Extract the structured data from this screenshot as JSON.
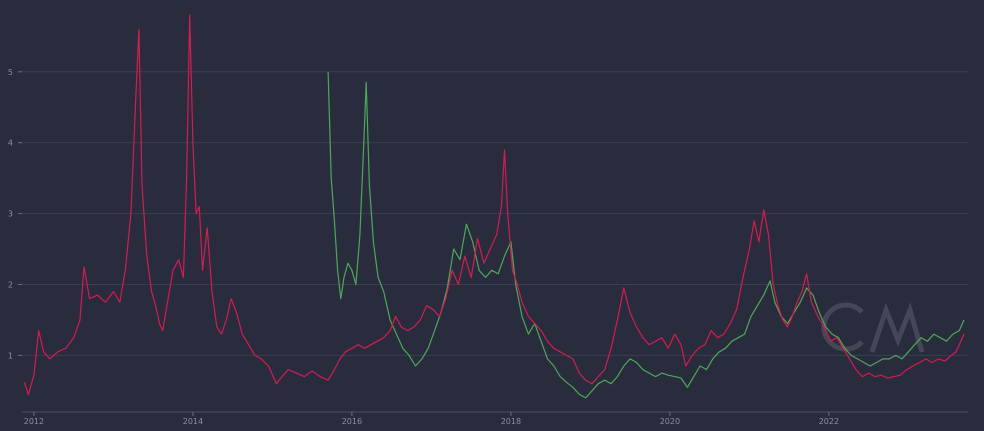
{
  "chart_data": {
    "type": "line",
    "title": "",
    "xlabel": "",
    "ylabel": "",
    "xlim": [
      2011.85,
      2023.75
    ],
    "ylim": [
      0.3,
      5.9
    ],
    "grid": true,
    "legend": "none",
    "x_ticks": [
      {
        "value": 2012,
        "label": "2012"
      },
      {
        "value": 2014,
        "label": "2014"
      },
      {
        "value": 2016,
        "label": "2016"
      },
      {
        "value": 2018,
        "label": "2018"
      },
      {
        "value": 2020,
        "label": "2020"
      },
      {
        "value": 2022,
        "label": "2022"
      }
    ],
    "y_ticks": [
      {
        "value": 1,
        "label": "1"
      },
      {
        "value": 2,
        "label": "2"
      },
      {
        "value": 3,
        "label": "3"
      },
      {
        "value": 4,
        "label": "4"
      },
      {
        "value": 5,
        "label": "5"
      }
    ],
    "series": [
      {
        "color": "#d81b4f",
        "points": [
          [
            2011.88,
            0.62
          ],
          [
            2011.93,
            0.45
          ],
          [
            2012.0,
            0.72
          ],
          [
            2012.06,
            1.35
          ],
          [
            2012.12,
            1.05
          ],
          [
            2012.2,
            0.95
          ],
          [
            2012.3,
            1.05
          ],
          [
            2012.4,
            1.1
          ],
          [
            2012.5,
            1.25
          ],
          [
            2012.58,
            1.5
          ],
          [
            2012.63,
            2.25
          ],
          [
            2012.7,
            1.8
          ],
          [
            2012.8,
            1.85
          ],
          [
            2012.9,
            1.75
          ],
          [
            2013.0,
            1.9
          ],
          [
            2013.08,
            1.75
          ],
          [
            2013.15,
            2.2
          ],
          [
            2013.22,
            3.0
          ],
          [
            2013.28,
            4.6
          ],
          [
            2013.32,
            5.6
          ],
          [
            2013.36,
            3.4
          ],
          [
            2013.42,
            2.4
          ],
          [
            2013.48,
            1.9
          ],
          [
            2013.53,
            1.7
          ],
          [
            2013.58,
            1.45
          ],
          [
            2013.62,
            1.35
          ],
          [
            2013.68,
            1.75
          ],
          [
            2013.75,
            2.2
          ],
          [
            2013.82,
            2.35
          ],
          [
            2013.88,
            2.1
          ],
          [
            2013.92,
            3.5
          ],
          [
            2013.96,
            5.8
          ],
          [
            2014.0,
            4.0
          ],
          [
            2014.04,
            3.0
          ],
          [
            2014.08,
            3.1
          ],
          [
            2014.12,
            2.2
          ],
          [
            2014.18,
            2.8
          ],
          [
            2014.24,
            1.9
          ],
          [
            2014.3,
            1.4
          ],
          [
            2014.36,
            1.3
          ],
          [
            2014.42,
            1.5
          ],
          [
            2014.48,
            1.8
          ],
          [
            2014.55,
            1.6
          ],
          [
            2014.62,
            1.3
          ],
          [
            2014.7,
            1.15
          ],
          [
            2014.78,
            1.0
          ],
          [
            2014.86,
            0.95
          ],
          [
            2014.95,
            0.85
          ],
          [
            2015.05,
            0.6
          ],
          [
            2015.12,
            0.7
          ],
          [
            2015.2,
            0.8
          ],
          [
            2015.3,
            0.75
          ],
          [
            2015.4,
            0.7
          ],
          [
            2015.5,
            0.78
          ],
          [
            2015.6,
            0.7
          ],
          [
            2015.7,
            0.65
          ],
          [
            2015.78,
            0.8
          ],
          [
            2015.85,
            0.95
          ],
          [
            2015.92,
            1.05
          ],
          [
            2016.0,
            1.1
          ],
          [
            2016.08,
            1.15
          ],
          [
            2016.16,
            1.1
          ],
          [
            2016.24,
            1.15
          ],
          [
            2016.32,
            1.2
          ],
          [
            2016.4,
            1.25
          ],
          [
            2016.48,
            1.35
          ],
          [
            2016.55,
            1.55
          ],
          [
            2016.62,
            1.4
          ],
          [
            2016.7,
            1.35
          ],
          [
            2016.78,
            1.4
          ],
          [
            2016.86,
            1.5
          ],
          [
            2016.94,
            1.7
          ],
          [
            2017.02,
            1.65
          ],
          [
            2017.1,
            1.55
          ],
          [
            2017.18,
            1.8
          ],
          [
            2017.26,
            2.2
          ],
          [
            2017.34,
            2.0
          ],
          [
            2017.42,
            2.4
          ],
          [
            2017.5,
            2.1
          ],
          [
            2017.58,
            2.65
          ],
          [
            2017.66,
            2.3
          ],
          [
            2017.74,
            2.5
          ],
          [
            2017.82,
            2.7
          ],
          [
            2017.88,
            3.1
          ],
          [
            2017.92,
            3.9
          ],
          [
            2017.96,
            3.0
          ],
          [
            2018.02,
            2.2
          ],
          [
            2018.08,
            2.0
          ],
          [
            2018.14,
            1.75
          ],
          [
            2018.22,
            1.55
          ],
          [
            2018.3,
            1.45
          ],
          [
            2018.38,
            1.35
          ],
          [
            2018.46,
            1.2
          ],
          [
            2018.54,
            1.1
          ],
          [
            2018.62,
            1.05
          ],
          [
            2018.7,
            1.0
          ],
          [
            2018.78,
            0.95
          ],
          [
            2018.86,
            0.75
          ],
          [
            2018.94,
            0.65
          ],
          [
            2019.02,
            0.6
          ],
          [
            2019.1,
            0.7
          ],
          [
            2019.18,
            0.8
          ],
          [
            2019.26,
            1.1
          ],
          [
            2019.34,
            1.5
          ],
          [
            2019.42,
            1.95
          ],
          [
            2019.5,
            1.6
          ],
          [
            2019.58,
            1.4
          ],
          [
            2019.66,
            1.25
          ],
          [
            2019.74,
            1.15
          ],
          [
            2019.82,
            1.2
          ],
          [
            2019.9,
            1.25
          ],
          [
            2019.98,
            1.1
          ],
          [
            2020.06,
            1.3
          ],
          [
            2020.14,
            1.15
          ],
          [
            2020.2,
            0.85
          ],
          [
            2020.28,
            1.0
          ],
          [
            2020.36,
            1.1
          ],
          [
            2020.44,
            1.15
          ],
          [
            2020.52,
            1.35
          ],
          [
            2020.6,
            1.25
          ],
          [
            2020.68,
            1.3
          ],
          [
            2020.76,
            1.45
          ],
          [
            2020.84,
            1.65
          ],
          [
            2020.92,
            2.1
          ],
          [
            2021.0,
            2.5
          ],
          [
            2021.06,
            2.9
          ],
          [
            2021.12,
            2.6
          ],
          [
            2021.18,
            3.05
          ],
          [
            2021.24,
            2.7
          ],
          [
            2021.3,
            2.0
          ],
          [
            2021.36,
            1.7
          ],
          [
            2021.42,
            1.5
          ],
          [
            2021.48,
            1.4
          ],
          [
            2021.54,
            1.55
          ],
          [
            2021.6,
            1.75
          ],
          [
            2021.66,
            1.9
          ],
          [
            2021.72,
            2.15
          ],
          [
            2021.78,
            1.75
          ],
          [
            2021.86,
            1.55
          ],
          [
            2021.94,
            1.4
          ],
          [
            2022.02,
            1.2
          ],
          [
            2022.1,
            1.25
          ],
          [
            2022.18,
            1.1
          ],
          [
            2022.26,
            0.95
          ],
          [
            2022.34,
            0.8
          ],
          [
            2022.42,
            0.7
          ],
          [
            2022.5,
            0.75
          ],
          [
            2022.58,
            0.7
          ],
          [
            2022.66,
            0.72
          ],
          [
            2022.74,
            0.68
          ],
          [
            2022.82,
            0.7
          ],
          [
            2022.9,
            0.72
          ],
          [
            2022.98,
            0.8
          ],
          [
            2023.06,
            0.85
          ],
          [
            2023.14,
            0.9
          ],
          [
            2023.22,
            0.95
          ],
          [
            2023.3,
            0.9
          ],
          [
            2023.38,
            0.95
          ],
          [
            2023.46,
            0.92
          ],
          [
            2023.54,
            1.0
          ],
          [
            2023.6,
            1.05
          ],
          [
            2023.66,
            1.2
          ],
          [
            2023.7,
            1.3
          ]
        ]
      },
      {
        "color": "#4fa85a",
        "points": [
          [
            2015.7,
            5.0
          ],
          [
            2015.74,
            3.5
          ],
          [
            2015.78,
            2.9
          ],
          [
            2015.82,
            2.2
          ],
          [
            2015.86,
            1.8
          ],
          [
            2015.9,
            2.1
          ],
          [
            2015.95,
            2.3
          ],
          [
            2016.0,
            2.2
          ],
          [
            2016.05,
            2.0
          ],
          [
            2016.1,
            2.7
          ],
          [
            2016.15,
            4.0
          ],
          [
            2016.18,
            4.85
          ],
          [
            2016.22,
            3.4
          ],
          [
            2016.27,
            2.6
          ],
          [
            2016.33,
            2.1
          ],
          [
            2016.4,
            1.9
          ],
          [
            2016.48,
            1.5
          ],
          [
            2016.56,
            1.3
          ],
          [
            2016.64,
            1.1
          ],
          [
            2016.72,
            1.0
          ],
          [
            2016.8,
            0.85
          ],
          [
            2016.88,
            0.95
          ],
          [
            2016.96,
            1.1
          ],
          [
            2017.04,
            1.35
          ],
          [
            2017.12,
            1.6
          ],
          [
            2017.2,
            1.95
          ],
          [
            2017.28,
            2.5
          ],
          [
            2017.36,
            2.35
          ],
          [
            2017.44,
            2.85
          ],
          [
            2017.52,
            2.6
          ],
          [
            2017.6,
            2.2
          ],
          [
            2017.68,
            2.1
          ],
          [
            2017.76,
            2.2
          ],
          [
            2017.84,
            2.15
          ],
          [
            2017.92,
            2.4
          ],
          [
            2018.0,
            2.6
          ],
          [
            2018.06,
            2.0
          ],
          [
            2018.14,
            1.55
          ],
          [
            2018.22,
            1.3
          ],
          [
            2018.3,
            1.45
          ],
          [
            2018.38,
            1.2
          ],
          [
            2018.46,
            0.95
          ],
          [
            2018.54,
            0.85
          ],
          [
            2018.62,
            0.7
          ],
          [
            2018.7,
            0.62
          ],
          [
            2018.78,
            0.55
          ],
          [
            2018.86,
            0.45
          ],
          [
            2018.94,
            0.4
          ],
          [
            2019.02,
            0.5
          ],
          [
            2019.1,
            0.6
          ],
          [
            2019.18,
            0.65
          ],
          [
            2019.26,
            0.6
          ],
          [
            2019.34,
            0.7
          ],
          [
            2019.42,
            0.85
          ],
          [
            2019.5,
            0.95
          ],
          [
            2019.58,
            0.9
          ],
          [
            2019.66,
            0.8
          ],
          [
            2019.74,
            0.75
          ],
          [
            2019.82,
            0.7
          ],
          [
            2019.9,
            0.75
          ],
          [
            2019.98,
            0.72
          ],
          [
            2020.06,
            0.7
          ],
          [
            2020.14,
            0.68
          ],
          [
            2020.22,
            0.55
          ],
          [
            2020.3,
            0.7
          ],
          [
            2020.38,
            0.85
          ],
          [
            2020.46,
            0.8
          ],
          [
            2020.54,
            0.95
          ],
          [
            2020.62,
            1.05
          ],
          [
            2020.7,
            1.1
          ],
          [
            2020.78,
            1.2
          ],
          [
            2020.86,
            1.25
          ],
          [
            2020.94,
            1.3
          ],
          [
            2021.02,
            1.55
          ],
          [
            2021.1,
            1.7
          ],
          [
            2021.18,
            1.85
          ],
          [
            2021.26,
            2.05
          ],
          [
            2021.32,
            1.75
          ],
          [
            2021.4,
            1.55
          ],
          [
            2021.48,
            1.45
          ],
          [
            2021.56,
            1.6
          ],
          [
            2021.64,
            1.75
          ],
          [
            2021.72,
            1.95
          ],
          [
            2021.8,
            1.85
          ],
          [
            2021.88,
            1.6
          ],
          [
            2021.96,
            1.4
          ],
          [
            2022.04,
            1.3
          ],
          [
            2022.12,
            1.25
          ],
          [
            2022.2,
            1.1
          ],
          [
            2022.28,
            1.0
          ],
          [
            2022.36,
            0.95
          ],
          [
            2022.44,
            0.9
          ],
          [
            2022.52,
            0.85
          ],
          [
            2022.6,
            0.9
          ],
          [
            2022.68,
            0.95
          ],
          [
            2022.76,
            0.95
          ],
          [
            2022.84,
            1.0
          ],
          [
            2022.92,
            0.95
          ],
          [
            2023.0,
            1.05
          ],
          [
            2023.08,
            1.15
          ],
          [
            2023.16,
            1.25
          ],
          [
            2023.24,
            1.2
          ],
          [
            2023.32,
            1.3
          ],
          [
            2023.4,
            1.25
          ],
          [
            2023.48,
            1.2
          ],
          [
            2023.56,
            1.3
          ],
          [
            2023.64,
            1.35
          ],
          [
            2023.7,
            1.5
          ]
        ]
      }
    ]
  }
}
